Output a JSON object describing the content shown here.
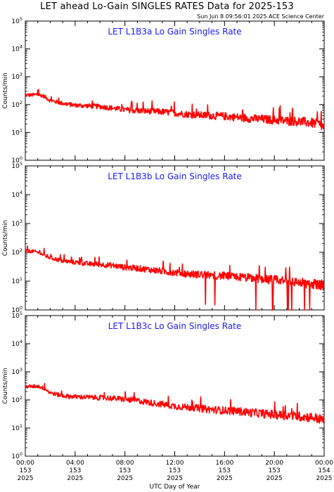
{
  "header": {
    "title": "LET ahead Lo-Gain SINGLES RATES Data for 2025-153",
    "timestamp": "Sun Jun  8 09:56:01 2025 ACE Science Center"
  },
  "chart_data": [
    {
      "type": "line",
      "title": "LET L1B3a Lo Gain Singles Rate",
      "ylabel": "Counts/min",
      "yscale": "log",
      "ylim": [
        1,
        100000
      ],
      "xlim": [
        0,
        24
      ],
      "line_color": "#ff0000",
      "x": [
        0,
        0.5,
        1,
        1.5,
        2,
        3,
        4,
        5,
        6,
        7,
        8,
        9,
        10,
        11,
        12,
        13,
        14,
        15,
        16,
        17,
        18,
        19,
        20,
        21,
        22,
        23,
        23.5,
        24
      ],
      "values": [
        220,
        220,
        230,
        200,
        140,
        110,
        95,
        90,
        85,
        75,
        65,
        60,
        58,
        55,
        50,
        45,
        42,
        40,
        38,
        35,
        32,
        30,
        28,
        26,
        25,
        22,
        20,
        15
      ]
    },
    {
      "type": "line",
      "title": "LET L1B3b Lo Gain Singles Rate",
      "ylabel": "Counts/min",
      "yscale": "log",
      "ylim": [
        1,
        100000
      ],
      "xlim": [
        0,
        24
      ],
      "line_color": "#ff0000",
      "x": [
        0,
        0.5,
        1,
        1.5,
        2,
        3,
        4,
        5,
        6,
        7,
        8,
        9,
        10,
        11,
        12,
        13,
        14,
        15,
        16,
        17,
        18,
        19,
        20,
        21,
        22,
        23,
        23.5,
        24
      ],
      "values": [
        110,
        110,
        100,
        80,
        65,
        50,
        45,
        40,
        38,
        35,
        30,
        28,
        25,
        22,
        20,
        18,
        17,
        16,
        15,
        14,
        13,
        12,
        11,
        10,
        9,
        8,
        8,
        7
      ]
    },
    {
      "type": "line",
      "title": "LET L1B3c Lo Gain Singles Rate",
      "ylabel": "Counts/min",
      "yscale": "log",
      "ylim": [
        1,
        100000
      ],
      "xlim": [
        0,
        24
      ],
      "line_color": "#ff0000",
      "x": [
        0,
        0.5,
        1,
        1.5,
        2,
        3,
        4,
        5,
        6,
        7,
        8,
        9,
        10,
        11,
        12,
        13,
        14,
        15,
        16,
        17,
        18,
        19,
        20,
        21,
        22,
        23,
        23.5,
        24
      ],
      "values": [
        300,
        300,
        310,
        260,
        180,
        140,
        130,
        125,
        120,
        115,
        105,
        95,
        80,
        70,
        60,
        55,
        50,
        45,
        42,
        40,
        36,
        33,
        30,
        28,
        26,
        24,
        22,
        18
      ]
    }
  ],
  "x_axis": {
    "label": "UTC Day of Year",
    "ticks": [
      {
        "hour": 0,
        "time": "00:00",
        "day": "153",
        "year": "2025"
      },
      {
        "hour": 4,
        "time": "04:00",
        "day": "153",
        "year": "2025"
      },
      {
        "hour": 8,
        "time": "08:00",
        "day": "153",
        "year": "2025"
      },
      {
        "hour": 12,
        "time": "12:00",
        "day": "153",
        "year": "2025"
      },
      {
        "hour": 16,
        "time": "16:00",
        "day": "153",
        "year": "2025"
      },
      {
        "hour": 20,
        "time": "20:00",
        "day": "153",
        "year": "2025"
      },
      {
        "hour": 24,
        "time": "00:00",
        "day": "154",
        "year": "2025"
      }
    ]
  },
  "y_ticks": [
    {
      "base": "10",
      "exp": "0"
    },
    {
      "base": "10",
      "exp": "1"
    },
    {
      "base": "10",
      "exp": "2"
    },
    {
      "base": "10",
      "exp": "3"
    },
    {
      "base": "10",
      "exp": "4"
    },
    {
      "base": "10",
      "exp": "5"
    }
  ]
}
